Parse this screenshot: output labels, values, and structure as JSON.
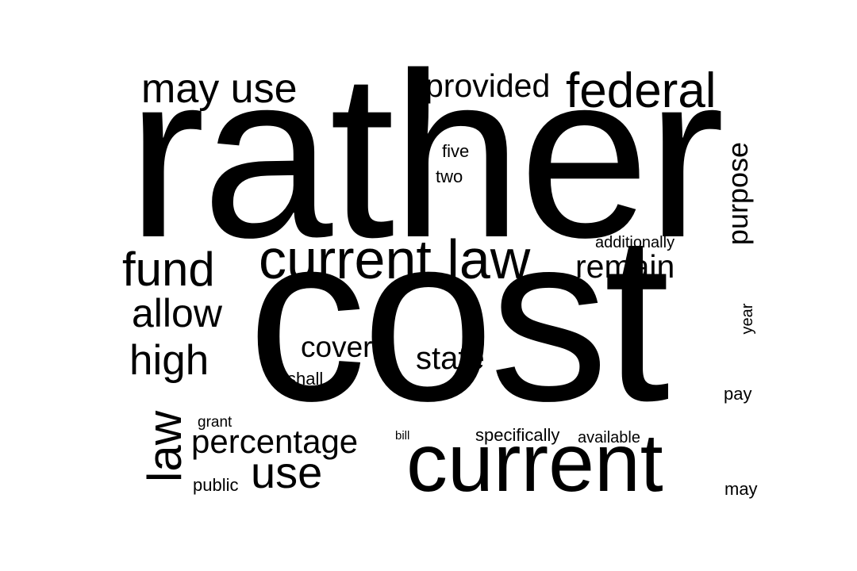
{
  "words": {
    "rather": "rather",
    "cost": "cost",
    "current": "current",
    "current_law": "current law",
    "may_use": "may use",
    "provided": "provided",
    "federal": "federal",
    "fund": "fund",
    "allow": "allow",
    "high": "high",
    "law": "law",
    "percentage": "percentage",
    "use": "use",
    "remain": "remain",
    "purpose": "purpose",
    "state": "state",
    "cover": "cover",
    "five": "five",
    "two": "two",
    "additionally": "additionally",
    "year": "year",
    "shall": "shall",
    "pay": "pay",
    "grant": "grant",
    "public": "public",
    "bill": "bill",
    "specifically": "specifically",
    "available": "available",
    "may": "may"
  },
  "colors": {
    "text": "#000000",
    "background": "#ffffff"
  }
}
